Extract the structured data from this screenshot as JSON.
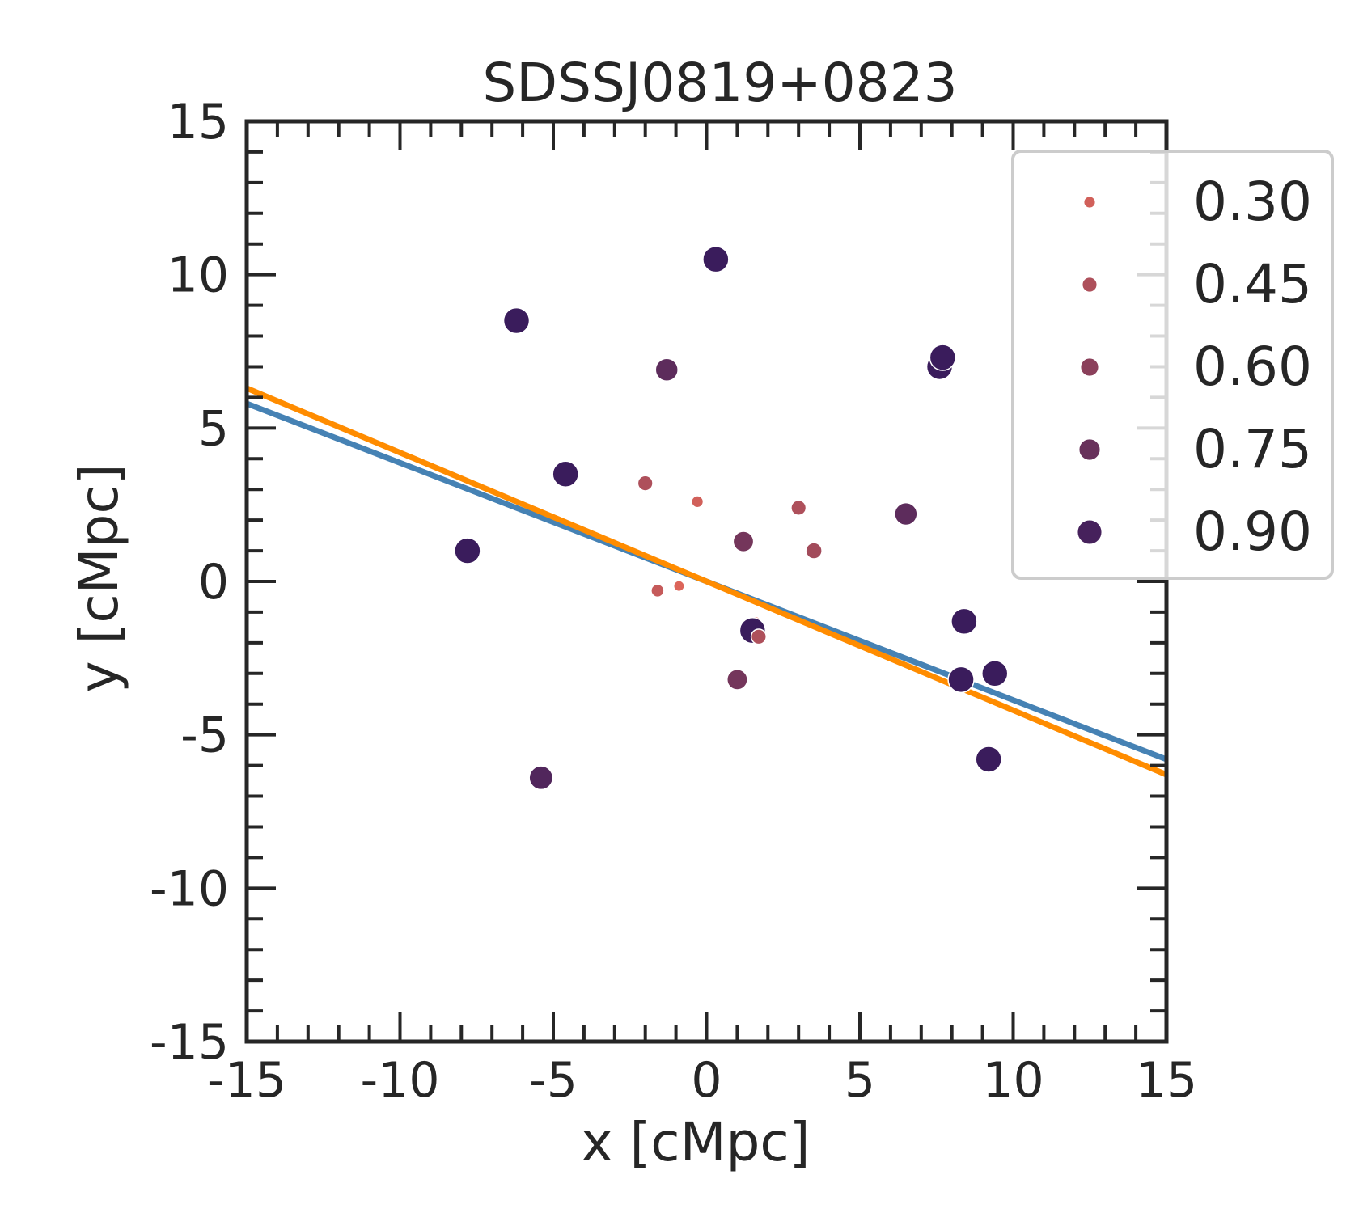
{
  "chart_data": {
    "type": "scatter",
    "title": "SDSSJ0819+0823",
    "xlabel": "x [cMpc]",
    "ylabel": "y [cMpc]",
    "xlim": [
      -15,
      15
    ],
    "ylim": [
      -15,
      15
    ],
    "xticks": [
      -15,
      -10,
      -5,
      0,
      5,
      10,
      15
    ],
    "yticks": [
      -15,
      -10,
      -5,
      0,
      5,
      10,
      15
    ],
    "xtick_labels": [
      "-15",
      "-10",
      "-5",
      "0",
      "5",
      "10",
      "15"
    ],
    "ytick_labels": [
      "-15",
      "-10",
      "-5",
      "0",
      "5",
      "10",
      "15"
    ],
    "grid": false,
    "legend": {
      "placement": "upper-right-outside",
      "entries": [
        {
          "label": "0.30",
          "value": 0.3
        },
        {
          "label": "0.45",
          "value": 0.45
        },
        {
          "label": "0.60",
          "value": 0.6
        },
        {
          "label": "0.75",
          "value": 0.75
        },
        {
          "label": "0.90",
          "value": 0.9
        }
      ]
    },
    "points": [
      {
        "x": 0.3,
        "y": 10.5,
        "v": 0.95
      },
      {
        "x": -6.2,
        "y": 8.5,
        "v": 0.95
      },
      {
        "x": -1.3,
        "y": 6.9,
        "v": 0.8
      },
      {
        "x": 7.6,
        "y": 7.0,
        "v": 0.95
      },
      {
        "x": 7.7,
        "y": 7.3,
        "v": 0.95
      },
      {
        "x": -4.6,
        "y": 3.5,
        "v": 0.95
      },
      {
        "x": -7.8,
        "y": 1.0,
        "v": 0.95
      },
      {
        "x": -2.0,
        "y": 3.2,
        "v": 0.45
      },
      {
        "x": -0.3,
        "y": 2.6,
        "v": 0.3
      },
      {
        "x": 3.0,
        "y": 2.4,
        "v": 0.45
      },
      {
        "x": 3.5,
        "y": 1.0,
        "v": 0.5
      },
      {
        "x": 1.2,
        "y": 1.3,
        "v": 0.7
      },
      {
        "x": 6.5,
        "y": 2.2,
        "v": 0.8
      },
      {
        "x": -1.6,
        "y": -0.3,
        "v": 0.35
      },
      {
        "x": -0.9,
        "y": -0.15,
        "v": 0.25
      },
      {
        "x": 1.6,
        "y": -1.3,
        "v": 0.2
      },
      {
        "x": 1.5,
        "y": -1.6,
        "v": 0.95
      },
      {
        "x": 1.7,
        "y": -1.8,
        "v": 0.45
      },
      {
        "x": 8.4,
        "y": -1.3,
        "v": 0.95
      },
      {
        "x": 1.0,
        "y": -3.2,
        "v": 0.7
      },
      {
        "x": 8.3,
        "y": -3.2,
        "v": 0.95
      },
      {
        "x": 9.4,
        "y": -3.0,
        "v": 0.95
      },
      {
        "x": 9.2,
        "y": -5.8,
        "v": 0.95
      },
      {
        "x": -5.4,
        "y": -6.4,
        "v": 0.85
      }
    ],
    "fit_lines": [
      {
        "name": "fit-blue",
        "color": "#4682b4",
        "x": [
          -15,
          15
        ],
        "y": [
          5.8,
          -5.8
        ]
      },
      {
        "name": "fit-orange",
        "color": "#ff8c00",
        "x": [
          -15,
          15
        ],
        "y": [
          6.3,
          -6.3
        ]
      }
    ],
    "colors": {
      "axis": "#262626",
      "legend_border": "#cccccc",
      "point_edge": "#ffffff",
      "hue_low": "#e86a5a",
      "hue_high": "#3a1c5c"
    }
  }
}
